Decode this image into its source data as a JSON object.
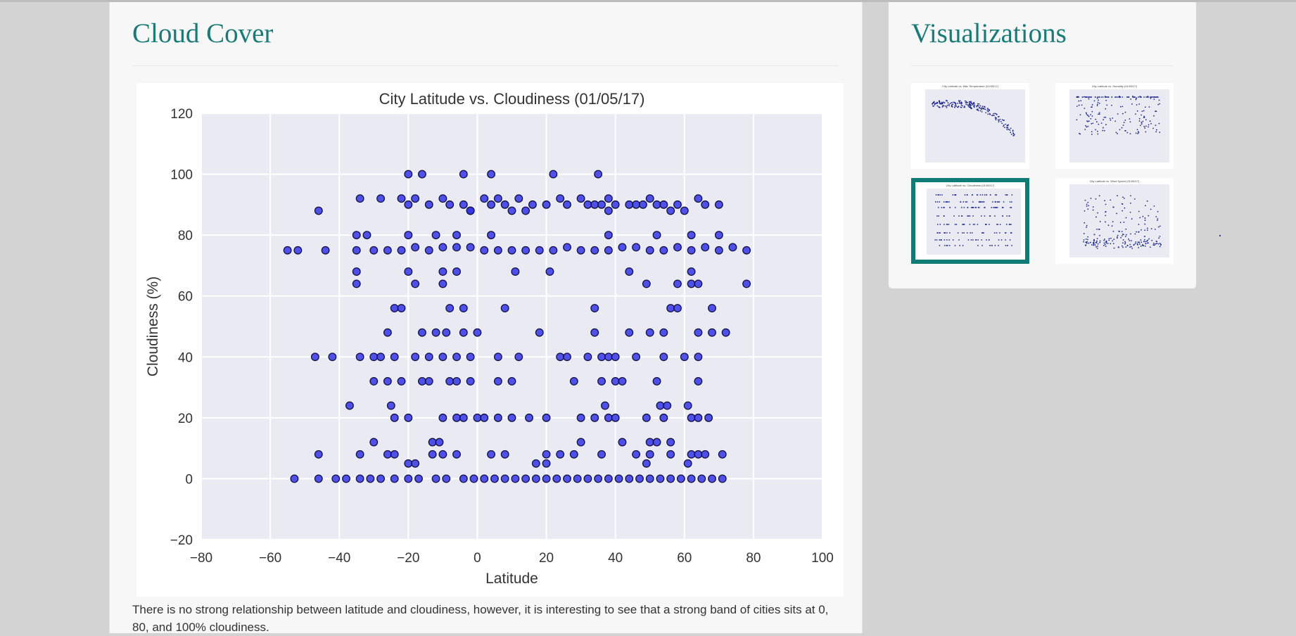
{
  "main": {
    "title": "Cloud Cover",
    "description": "There is no strong relationship between latitude and cloudiness, however, it is interesting to see that a strong band of cities sits at 0, 80, and 100% cloudiness."
  },
  "sidebar": {
    "title": "Visualizations",
    "thumbnails": [
      {
        "title": "City Latitude vs. Max Temperature (01/05/17)",
        "active": false
      },
      {
        "title": "City Latitude vs. Humidity (01/05/17)",
        "active": false
      },
      {
        "title": "City Latitude vs. Cloudiness (01/05/17)",
        "active": true
      },
      {
        "title": "City Latitude vs. Wind Speed (01/05/17)",
        "active": false
      }
    ]
  },
  "colors": {
    "accent": "#1b7a78",
    "marker_fill": "#3434e8",
    "marker_edge": "#111144",
    "plot_bg": "#eaeaf2"
  },
  "chart_data": {
    "type": "scatter",
    "title": "City Latitude vs. Cloudiness (01/05/17)",
    "xlabel": "Latitude",
    "ylabel": "Cloudiness (%)",
    "xlim": [
      -80,
      100
    ],
    "ylim": [
      -20,
      120
    ],
    "xticks": [
      -80,
      -60,
      -40,
      -20,
      0,
      20,
      40,
      60,
      80,
      100
    ],
    "yticks": [
      -20,
      0,
      20,
      40,
      60,
      80,
      100,
      120
    ],
    "grid": true,
    "series": [
      {
        "x": [
          -20,
          -16,
          -4,
          4,
          22,
          35,
          -34,
          -28,
          -22,
          -20,
          -18,
          -14,
          -10,
          -8,
          -4,
          -2,
          2,
          4,
          6,
          10,
          12,
          16,
          20,
          24,
          30,
          32,
          34,
          36,
          38,
          40,
          44,
          46,
          50,
          52,
          54,
          58,
          60,
          64,
          66,
          70,
          -46,
          -2,
          8,
          14,
          26,
          38,
          48,
          56,
          -55,
          -52,
          -44,
          -35,
          -30,
          -26,
          -22,
          -18,
          -14,
          -10,
          -6,
          -2,
          2,
          6,
          10,
          14,
          18,
          22,
          26,
          30,
          34,
          38,
          42,
          46,
          50,
          54,
          58,
          62,
          66,
          70,
          74,
          78,
          -35,
          -32,
          -20,
          -12,
          -6,
          4,
          38,
          52,
          62,
          70,
          -35,
          -20,
          -10,
          -6,
          11,
          21,
          44,
          62,
          -35,
          -18,
          -10,
          49,
          58,
          62,
          64,
          78,
          -24,
          -22,
          -8,
          -4,
          8,
          34,
          56,
          58,
          68,
          -26,
          -16,
          -12,
          -9,
          -4,
          0,
          18,
          34,
          44,
          50,
          54,
          64,
          68,
          72,
          -47,
          -42,
          -34,
          -30,
          -28,
          -24,
          -18,
          -14,
          -10,
          -6,
          -2,
          6,
          12,
          24,
          26,
          32,
          36,
          38,
          40,
          46,
          54,
          60,
          64,
          -30,
          -26,
          -22,
          -16,
          -14,
          -8,
          -6,
          -2,
          6,
          10,
          28,
          36,
          40,
          42,
          52,
          64,
          -37,
          -25,
          37,
          53,
          55,
          61,
          -24,
          -20,
          -10,
          -6,
          -4,
          0,
          2,
          6,
          10,
          15,
          20,
          30,
          34,
          38,
          40,
          49,
          54,
          62,
          64,
          67,
          -30,
          -13,
          -11,
          30,
          42,
          50,
          52,
          56,
          -46,
          -34,
          -26,
          -24,
          -13,
          -10,
          -6,
          4,
          8,
          20,
          24,
          28,
          36,
          46,
          50,
          56,
          62,
          64,
          66,
          71,
          -20,
          -18,
          17,
          20,
          49,
          61,
          -53,
          -46,
          -41,
          -38,
          -34,
          -31,
          -28,
          -24,
          -20,
          -17,
          -12,
          -9,
          -4,
          -1,
          2,
          5,
          8,
          11,
          14,
          17,
          20,
          23,
          26,
          29,
          32,
          35,
          38,
          41,
          44,
          47,
          50,
          53,
          56,
          59,
          62,
          65,
          68,
          71
        ],
        "y": [
          100,
          100,
          100,
          100,
          100,
          100,
          92,
          92,
          92,
          90,
          92,
          90,
          92,
          90,
          90,
          88,
          92,
          90,
          92,
          88,
          92,
          90,
          90,
          92,
          92,
          90,
          90,
          90,
          92,
          90,
          90,
          90,
          92,
          90,
          90,
          90,
          88,
          92,
          90,
          90,
          88,
          88,
          90,
          88,
          90,
          88,
          90,
          88,
          75,
          75,
          75,
          75,
          75,
          75,
          75,
          76,
          75,
          76,
          76,
          76,
          75,
          75,
          75,
          75,
          75,
          75,
          76,
          75,
          75,
          75,
          76,
          76,
          75,
          75,
          76,
          75,
          76,
          75,
          76,
          75,
          80,
          80,
          80,
          80,
          80,
          80,
          80,
          80,
          80,
          80,
          68,
          68,
          68,
          68,
          68,
          68,
          68,
          68,
          64,
          64,
          64,
          64,
          64,
          64,
          64,
          64,
          56,
          56,
          56,
          56,
          56,
          56,
          56,
          56,
          56,
          48,
          48,
          48,
          48,
          48,
          48,
          48,
          48,
          48,
          48,
          48,
          48,
          48,
          48,
          40,
          40,
          40,
          40,
          40,
          40,
          40,
          40,
          40,
          40,
          40,
          40,
          40,
          40,
          40,
          40,
          40,
          40,
          40,
          40,
          40,
          40,
          40,
          32,
          32,
          32,
          32,
          32,
          32,
          32,
          32,
          32,
          32,
          32,
          32,
          32,
          32,
          32,
          32,
          24,
          24,
          24,
          24,
          24,
          24,
          20,
          20,
          20,
          20,
          20,
          20,
          20,
          20,
          20,
          20,
          20,
          20,
          20,
          20,
          20,
          20,
          20,
          20,
          20,
          20,
          12,
          12,
          12,
          12,
          12,
          12,
          12,
          12,
          8,
          8,
          8,
          8,
          8,
          8,
          8,
          8,
          8,
          8,
          8,
          8,
          8,
          8,
          8,
          8,
          8,
          8,
          8,
          8,
          5,
          5,
          5,
          5,
          5,
          5,
          0,
          0,
          0,
          0,
          0,
          0,
          0,
          0,
          0,
          0,
          0,
          0,
          0,
          0,
          0,
          0,
          0,
          0,
          0,
          0,
          0,
          0,
          0,
          0,
          0,
          0,
          0,
          0,
          0,
          0,
          0,
          0,
          0,
          0,
          0,
          0,
          0,
          0
        ]
      }
    ]
  }
}
